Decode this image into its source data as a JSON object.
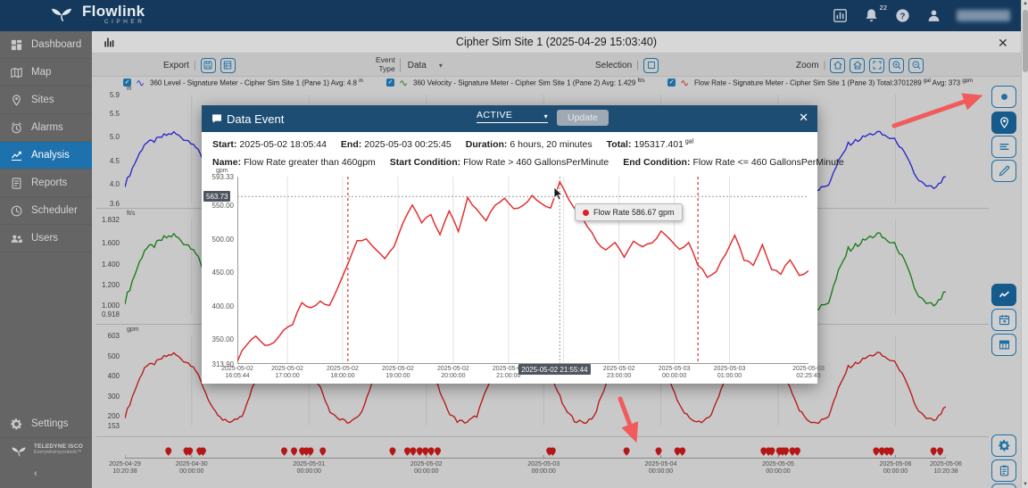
{
  "ui": {
    "close_glyph": "✕",
    "caret_down": "▾",
    "check_glyph": "✓",
    "collapse_glyph": "‹",
    "scroll_up": "▲",
    "scroll_down": "▼",
    "pipe": "|"
  },
  "header": {
    "brand": "Flowlink",
    "brand_sub": "CIPHER",
    "bell_badge": "22"
  },
  "sidebar": {
    "items": [
      {
        "label": "Dashboard",
        "icon": "dashboard",
        "active": false
      },
      {
        "label": "Map",
        "icon": "map",
        "active": false
      },
      {
        "label": "Sites",
        "icon": "pin",
        "active": false
      },
      {
        "label": "Alarms",
        "icon": "alarm",
        "active": false
      },
      {
        "label": "Analysis",
        "icon": "analysis",
        "active": true
      },
      {
        "label": "Reports",
        "icon": "reports",
        "active": false
      },
      {
        "label": "Scheduler",
        "icon": "scheduler",
        "active": false
      },
      {
        "label": "Users",
        "icon": "users",
        "active": false
      }
    ],
    "settings_label": "Settings",
    "footer_brand": "TELEDYNE ISCO",
    "footer_tagline": "Everywhereyoulook™"
  },
  "titlebar": {
    "title": "Cipher Sim Site 1 (2025-04-29 15:03:40)"
  },
  "toolbar": {
    "export_label": "Export",
    "event_type_label_1": "Event",
    "event_type_label_2": "Type",
    "event_type_value": "Data",
    "selection_label": "Selection",
    "zoom_label": "Zoom"
  },
  "legend": {
    "items": [
      {
        "color": "#2222cc",
        "segments": [
          {
            "t": "360 Level - Signature Meter - Cipher Sim Site 1 (Pane 1) Avg: 4.8 "
          },
          {
            "sup": "in"
          }
        ]
      },
      {
        "color": "#117a11",
        "segments": [
          {
            "t": "360 Velocity - Signature Meter - Cipher Sim Site 1 (Pane 2) Avg: 1.429 "
          },
          {
            "sup": "ft/s"
          }
        ]
      },
      {
        "color": "#c01c1c",
        "segments": [
          {
            "t": "Flow Rate - Signature Meter - Cipher Sim Site 1 (Pane 3) Total:3701289 "
          },
          {
            "sup": "gal"
          },
          {
            "t": " Avg: 373 "
          },
          {
            "sup": "gpm"
          }
        ]
      }
    ]
  },
  "modal": {
    "title": "Data Event",
    "status": "ACTIVE",
    "update_label": "Update",
    "info_rows": [
      [
        {
          "label": "Start:",
          "value": "2025-05-02 18:05:44"
        },
        {
          "label": "End:",
          "value": "2025-05-03 00:25:45"
        },
        {
          "label": "Duration:",
          "value": "6 hours, 20 minutes"
        },
        {
          "label": "Total:",
          "value": "195317.401",
          "sup": "gal"
        }
      ],
      [
        {
          "label": "Name:",
          "value": "Flow Rate greater than 460gpm"
        },
        {
          "label": "Start Condition:",
          "value": "Flow Rate > 460 GallonsPerMinute"
        },
        {
          "label": "End Condition:",
          "value": "Flow Rate <= 460 GallonsPerMinute"
        }
      ]
    ],
    "cursor": {
      "y_label": "563.73",
      "x_label": "2025-05-02 21:55:44"
    },
    "tooltip": {
      "text": "Flow Rate 586.67 gpm"
    }
  },
  "right_rail": {
    "buttons": [
      {
        "icon": "dot",
        "active": false
      },
      {
        "icon": "pin",
        "active": true
      },
      {
        "icon": "list",
        "active": false
      },
      {
        "icon": "pencil",
        "active": false
      },
      {
        "icon": "trend",
        "active": true
      },
      {
        "icon": "calendar",
        "active": false
      },
      {
        "icon": "table",
        "active": false
      },
      {
        "icon": "gear",
        "active": false
      },
      {
        "icon": "clipboard",
        "active": false
      },
      {
        "icon": "copy",
        "active": false
      }
    ]
  },
  "chart_data": [
    {
      "id": "level",
      "type": "line",
      "series_name": "360 Level",
      "unit": "in",
      "color": "#2222cc",
      "ylim": [
        3.6,
        5.9
      ],
      "yticks": [
        "5.9",
        "5.5",
        "5.0",
        "4.5",
        "4.0",
        "3.6"
      ],
      "x_range": [
        "2025-04-29 10:20:38",
        "2025-05-06 10:20:38"
      ],
      "values": [
        3.99,
        4.45,
        4.86,
        4.92,
        5.03,
        5.09,
        4.97,
        4.88,
        4.52,
        4.11,
        3.92,
        3.9,
        4.02,
        4.47,
        4.87,
        4.95,
        5.01,
        5.1,
        4.95,
        4.86,
        4.5,
        4.09,
        3.94,
        3.89,
        3.99,
        4.45,
        4.83,
        4.92,
        5.04,
        5.08,
        4.99,
        4.87,
        4.53,
        4.1,
        3.91,
        3.9,
        4.01,
        4.46,
        4.88,
        4.94,
        5.07,
        5.21,
        5.12,
        4.95,
        4.55,
        4.12,
        3.93,
        3.88,
        4.0,
        4.46,
        4.85,
        4.93,
        5.02,
        5.11,
        4.97,
        4.89,
        4.51,
        4.11,
        3.92,
        3.9,
        4.01,
        4.48,
        4.86,
        4.95,
        5.05,
        5.09,
        4.98,
        4.88,
        4.53,
        4.1,
        3.92,
        3.89,
        4.01,
        4.47,
        4.85,
        4.94,
        5.04,
        5.1,
        5.01,
        4.91,
        4.56,
        4.14,
        3.95,
        3.92,
        4.18
      ]
    },
    {
      "id": "velocity",
      "type": "line",
      "series_name": "360 Velocity",
      "unit": "ft/s",
      "color": "#117a11",
      "ylim": [
        0.918,
        1.832
      ],
      "yticks": [
        "1.832",
        "1.600",
        "1.400",
        "1.200",
        "1.000",
        "0.918"
      ],
      "x_range": [
        "2025-04-29 10:20:38",
        "2025-05-06 10:20:38"
      ],
      "values": [
        1.04,
        1.3,
        1.54,
        1.58,
        1.65,
        1.68,
        1.61,
        1.56,
        1.34,
        1.11,
        1.0,
        0.98,
        1.05,
        1.32,
        1.55,
        1.59,
        1.63,
        1.69,
        1.59,
        1.54,
        1.33,
        1.09,
        1.0,
        0.97,
        1.04,
        1.3,
        1.53,
        1.58,
        1.65,
        1.67,
        1.62,
        1.55,
        1.35,
        1.1,
        0.99,
        0.98,
        1.04,
        1.31,
        1.56,
        1.59,
        1.67,
        1.75,
        1.7,
        1.59,
        1.36,
        1.11,
        1.0,
        0.97,
        1.04,
        1.31,
        1.54,
        1.58,
        1.64,
        1.69,
        1.61,
        1.56,
        1.34,
        1.1,
        1.0,
        0.98,
        1.05,
        1.32,
        1.54,
        1.6,
        1.66,
        1.68,
        1.61,
        1.55,
        1.35,
        1.1,
        0.99,
        0.97,
        1.04,
        1.32,
        1.54,
        1.59,
        1.65,
        1.69,
        1.63,
        1.57,
        1.37,
        1.12,
        1.01,
        1.0,
        1.14
      ]
    },
    {
      "id": "flow",
      "type": "line",
      "series_name": "Flow Rate",
      "unit": "gpm",
      "color": "#b81414",
      "ylim": [
        153,
        603
      ],
      "yticks": [
        "603",
        "500",
        "400",
        "300",
        "200",
        "153"
      ],
      "x_range": [
        "2025-04-29 10:20:38",
        "2025-05-06 10:20:38"
      ],
      "values": [
        198,
        328,
        445,
        462,
        495,
        512,
        478,
        452,
        348,
        232,
        178,
        172,
        205,
        335,
        448,
        470,
        488,
        515,
        470,
        445,
        342,
        225,
        182,
        168,
        198,
        328,
        438,
        462,
        498,
        508,
        482,
        448,
        352,
        228,
        175,
        170,
        202,
        332,
        452,
        468,
        505,
        545,
        520,
        470,
        358,
        235,
        180,
        165,
        200,
        330,
        442,
        465,
        492,
        518,
        476,
        455,
        345,
        230,
        178,
        172,
        204,
        338,
        446,
        472,
        500,
        510,
        480,
        450,
        350,
        228,
        176,
        168,
        202,
        334,
        444,
        468,
        496,
        515,
        488,
        460,
        360,
        240,
        185,
        178,
        250
      ]
    },
    {
      "id": "event-flow",
      "type": "line",
      "series_name": "Flow Rate",
      "unit": "gpm",
      "color": "#e23030",
      "ylim": [
        313.9,
        593.33
      ],
      "yticks": [
        "593.33",
        "550.00",
        "500.00",
        "450.00",
        "400.00",
        "350.00",
        "313.90"
      ],
      "xticks": [
        {
          "l1": "2025-05-02",
          "l2": "16:05:44",
          "f": 0
        },
        {
          "l1": "2025-05-02",
          "l2": "17:00:00",
          "f": 0.0875
        },
        {
          "l1": "2025-05-02",
          "l2": "18:00:00",
          "f": 0.1843
        },
        {
          "l1": "2025-05-02",
          "l2": "19:00:00",
          "f": 0.2811
        },
        {
          "l1": "2025-05-02",
          "l2": "20:00:00",
          "f": 0.3779
        },
        {
          "l1": "2025-05-02",
          "l2": "21:00:00",
          "f": 0.4746
        },
        {
          "l1": "2025-05-02",
          "l2": "23:00:00",
          "f": 0.6682
        },
        {
          "l1": "2025-05-03",
          "l2": "00:00:00",
          "f": 0.765
        },
        {
          "l1": "2025-05-03",
          "l2": "01:00:00",
          "f": 0.8617
        },
        {
          "l1": "2025-05-03",
          "l2": "02:25:45",
          "f": 1
        }
      ],
      "grid_f": [
        0.0875,
        0.1843,
        0.2811,
        0.3779,
        0.4746,
        0.5714,
        0.6682,
        0.765,
        0.8617
      ],
      "event_start_f": 0.1935,
      "event_end_f": 0.8065,
      "cursor_f": 0.5645,
      "cursor_value": 563.73,
      "hover_value": 586.67,
      "values": [
        320,
        344,
        356,
        341,
        347,
        362,
        374,
        404,
        396,
        407,
        400,
        430,
        465,
        498,
        502,
        483,
        472,
        490,
        523,
        551,
        524,
        537,
        506,
        543,
        513,
        563,
        543,
        528,
        551,
        562,
        547,
        549,
        567,
        553,
        547,
        586,
        560,
        540,
        520,
        498,
        483,
        497,
        475,
        497,
        489,
        493,
        512,
        498,
        483,
        497,
        462,
        445,
        452,
        478,
        505,
        470,
        463,
        492,
        455,
        448,
        470,
        444,
        455
      ]
    },
    {
      "id": "event-timeline",
      "type": "scatter",
      "marker_color": "#b51717",
      "marker_f": [
        0.053,
        0.075,
        0.079,
        0.091,
        0.095,
        0.194,
        0.206,
        0.216,
        0.221,
        0.226,
        0.241,
        0.326,
        0.344,
        0.351,
        0.359,
        0.366,
        0.373,
        0.381,
        0.517,
        0.521,
        0.611,
        0.65,
        0.673,
        0.679,
        0.778,
        0.784,
        0.788,
        0.797,
        0.801,
        0.805,
        0.813,
        0.819,
        0.915,
        0.922,
        0.928,
        0.933,
        0.985,
        0.993
      ],
      "labels": [
        {
          "l1": "2025-04-29",
          "l2": "10:20:38",
          "f": 0
        },
        {
          "l1": "2025-04-30",
          "l2": "00:00:00",
          "f": 0.0813
        },
        {
          "l1": "2025-05-01",
          "l2": "00:00:00",
          "f": 0.2242
        },
        {
          "l1": "2025-05-02",
          "l2": "00:00:00",
          "f": 0.3671
        },
        {
          "l1": "2025-05-03",
          "l2": "00:00:00",
          "f": 0.51
        },
        {
          "l1": "2025-05-04",
          "l2": "00:00:00",
          "f": 0.6528
        },
        {
          "l1": "2025-05-05",
          "l2": "00:00:00",
          "f": 0.7957
        },
        {
          "l1": "2025-05-06",
          "l2": "00:00:00",
          "f": 0.9386
        },
        {
          "l1": "2025-05-06",
          "l2": "10:20:38",
          "f": 1
        }
      ]
    }
  ]
}
